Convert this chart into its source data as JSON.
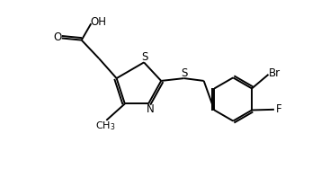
{
  "bg_color": "#ffffff",
  "line_color": "#000000",
  "text_color": "#000000",
  "bond_lw": 1.4,
  "font_size": 8.5,
  "xlim": [
    0,
    10
  ],
  "ylim": [
    0,
    5.27
  ]
}
